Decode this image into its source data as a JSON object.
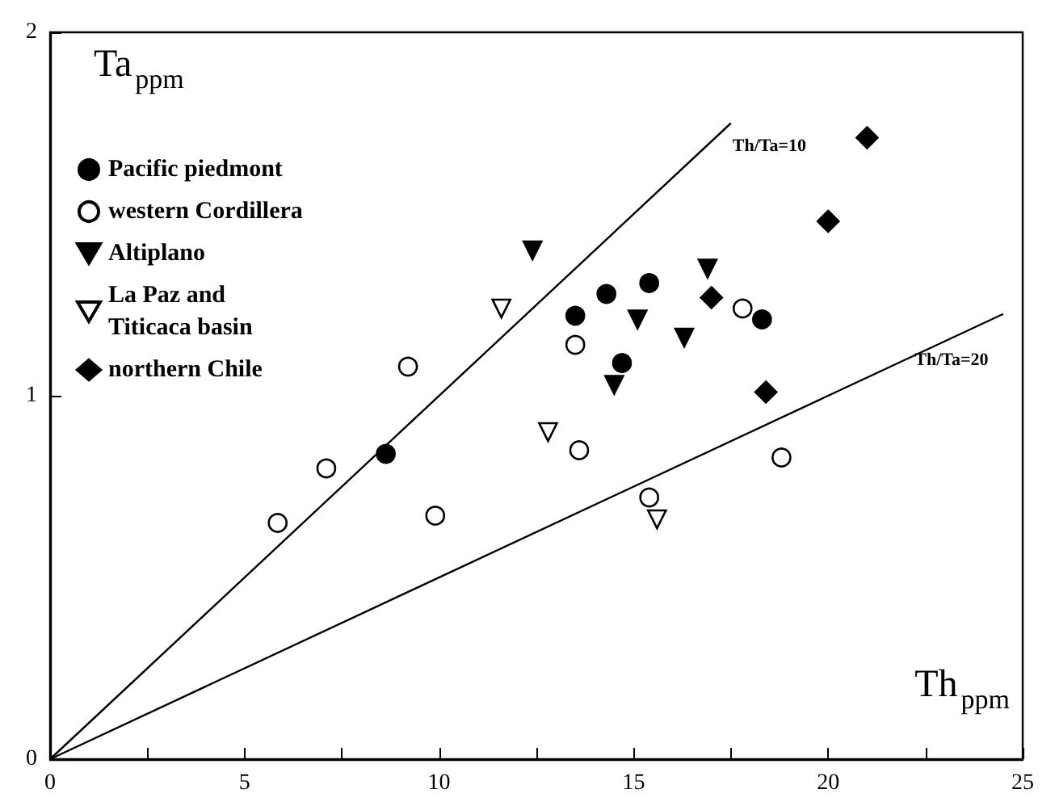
{
  "chart_data": {
    "type": "scatter",
    "xlabel": "Th$_{ppm}$",
    "ylabel": "Ta$_{ppm}$",
    "xlim": [
      0,
      25
    ],
    "ylim": [
      0,
      2
    ],
    "xticks": [
      0,
      {
        "value": 2.5,
        "label": null
      },
      5,
      {
        "value": 7.5,
        "label": null
      },
      10,
      {
        "value": 12.5,
        "label": null
      },
      15,
      {
        "value": 17.5,
        "label": null
      },
      20,
      {
        "value": 22.5,
        "label": null
      },
      25
    ],
    "yticks": [
      0,
      1,
      2
    ],
    "grid": false,
    "legend": "top left",
    "series": [
      {
        "name": "Pacific piedmont",
        "marker": "circle",
        "color": "#000000",
        "x": [
          8.63,
          13.5,
          14.3,
          15.4,
          14.7,
          18.3
        ],
        "values": [
          0.84,
          1.22,
          1.28,
          1.31,
          1.09,
          1.21
        ]
      },
      {
        "name": "western Cordillera",
        "marker": "circle",
        "color": "#ffffff",
        "x": [
          5.85,
          7.1,
          9.2,
          9.9,
          13.5,
          13.6,
          17.8,
          18.8,
          15.4
        ],
        "values": [
          0.65,
          0.8,
          1.08,
          0.67,
          1.14,
          0.85,
          1.24,
          0.83,
          0.72
        ]
      },
      {
        "name": "Altiplano",
        "marker": "triangle",
        "color": "#000000",
        "x": [
          12.4,
          16.9,
          15.1,
          16.3,
          14.5
        ],
        "values": [
          1.4,
          1.35,
          1.21,
          1.16,
          1.03
        ]
      },
      {
        "name": "La Paz and\nTiticaca basin",
        "marker": "triangle",
        "color": "#ffffff",
        "x": [
          11.6,
          12.8,
          15.6
        ],
        "values": [
          1.24,
          0.9,
          0.66
        ]
      },
      {
        "name": "northern Chile",
        "marker": "diamond",
        "color": "#000000",
        "x": [
          21.0,
          20.0,
          17.0,
          18.4
        ],
        "values": [
          1.71,
          1.48,
          1.27,
          1.01
        ]
      },
      {
        "name": "Th/Ta=10",
        "type": "line",
        "marker": "none",
        "color": "#000000",
        "x": [
          0,
          17.5
        ],
        "values": [
          0,
          1.75
        ]
      },
      {
        "name": "Th/Ta=20",
        "type": "line",
        "marker": "none",
        "color": "#000000",
        "x": [
          0,
          24.5
        ],
        "values": [
          0,
          1.225
        ]
      }
    ]
  }
}
